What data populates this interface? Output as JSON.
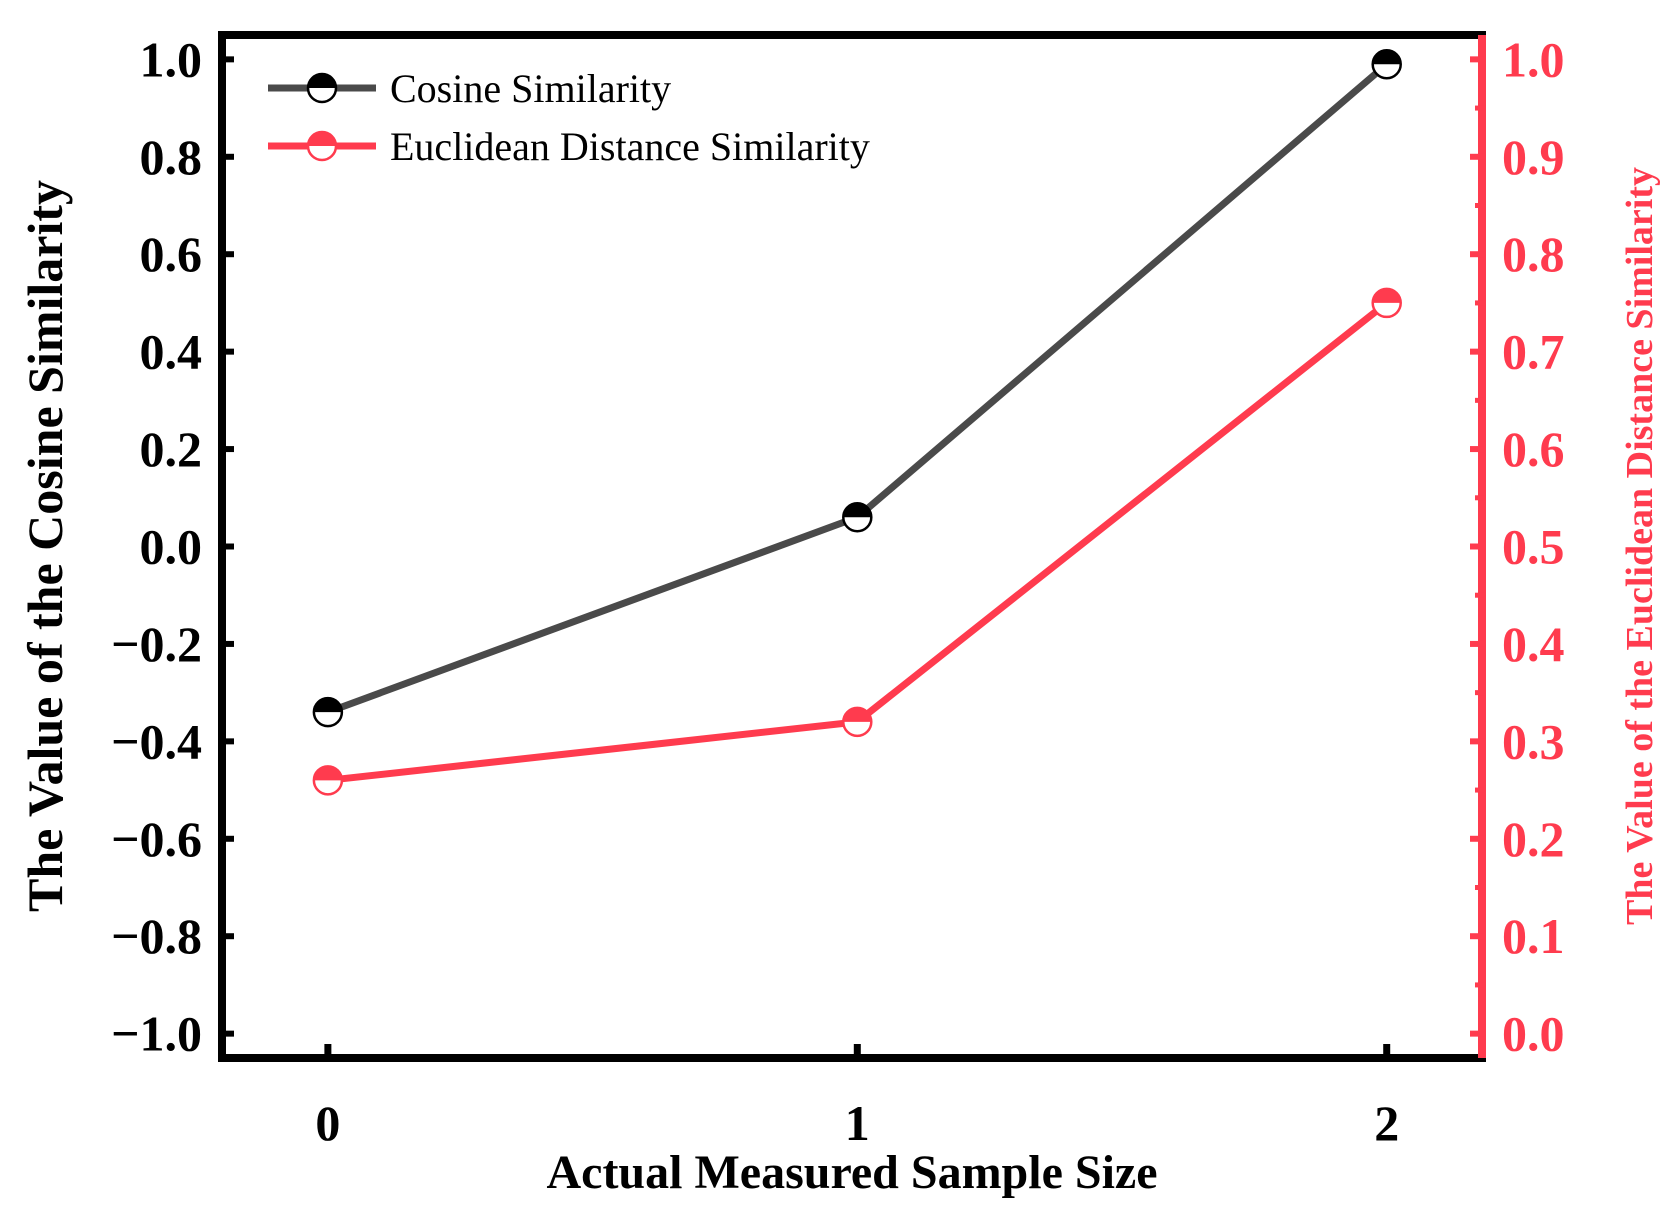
{
  "chart_data": {
    "type": "line",
    "title": "",
    "xlabel": "Actual Measured Sample Size",
    "ylabel": "The Value of the Cosine Similarity",
    "y2label": "The Value of the Euclidean Distance Similarity",
    "x": [
      0,
      1,
      2
    ],
    "x_tick_labels": [
      "0",
      "1",
      "2"
    ],
    "xlim": [
      -0.2,
      2.18
    ],
    "ylim": [
      -1.05,
      1.05
    ],
    "y_ticks": [
      -1.0,
      -0.8,
      -0.6,
      -0.4,
      -0.2,
      0.0,
      0.2,
      0.4,
      0.6,
      0.8,
      1.0
    ],
    "y_tick_labels": [
      "−1.0",
      "−0.8",
      "−0.6",
      "−0.4",
      "−0.2",
      "0.0",
      "0.2",
      "0.4",
      "0.6",
      "0.8",
      "1.0"
    ],
    "y2lim": [
      -0.025,
      1.025
    ],
    "y2_ticks": [
      0.0,
      0.1,
      0.2,
      0.3,
      0.4,
      0.5,
      0.6,
      0.7,
      0.8,
      0.9,
      1.0
    ],
    "y2_tick_labels": [
      "0.0",
      "0.1",
      "0.2",
      "0.3",
      "0.4",
      "0.5",
      "0.6",
      "0.7",
      "0.8",
      "0.9",
      "1.0"
    ],
    "grid": false,
    "legend_position": "top-left",
    "series": [
      {
        "name": "Cosine Similarity",
        "axis": "left",
        "color": "#4a4a4a",
        "marker_color": "#000000",
        "values": [
          -0.34,
          0.06,
          0.99
        ]
      },
      {
        "name": "Euclidean Distance Similarity",
        "axis": "right",
        "color": "#ff3b4e",
        "marker_color": "#ff3b4e",
        "values": [
          0.26,
          0.32,
          0.75
        ]
      }
    ],
    "axis_colors": {
      "left": "#000000",
      "right": "#ff3b4e"
    }
  }
}
